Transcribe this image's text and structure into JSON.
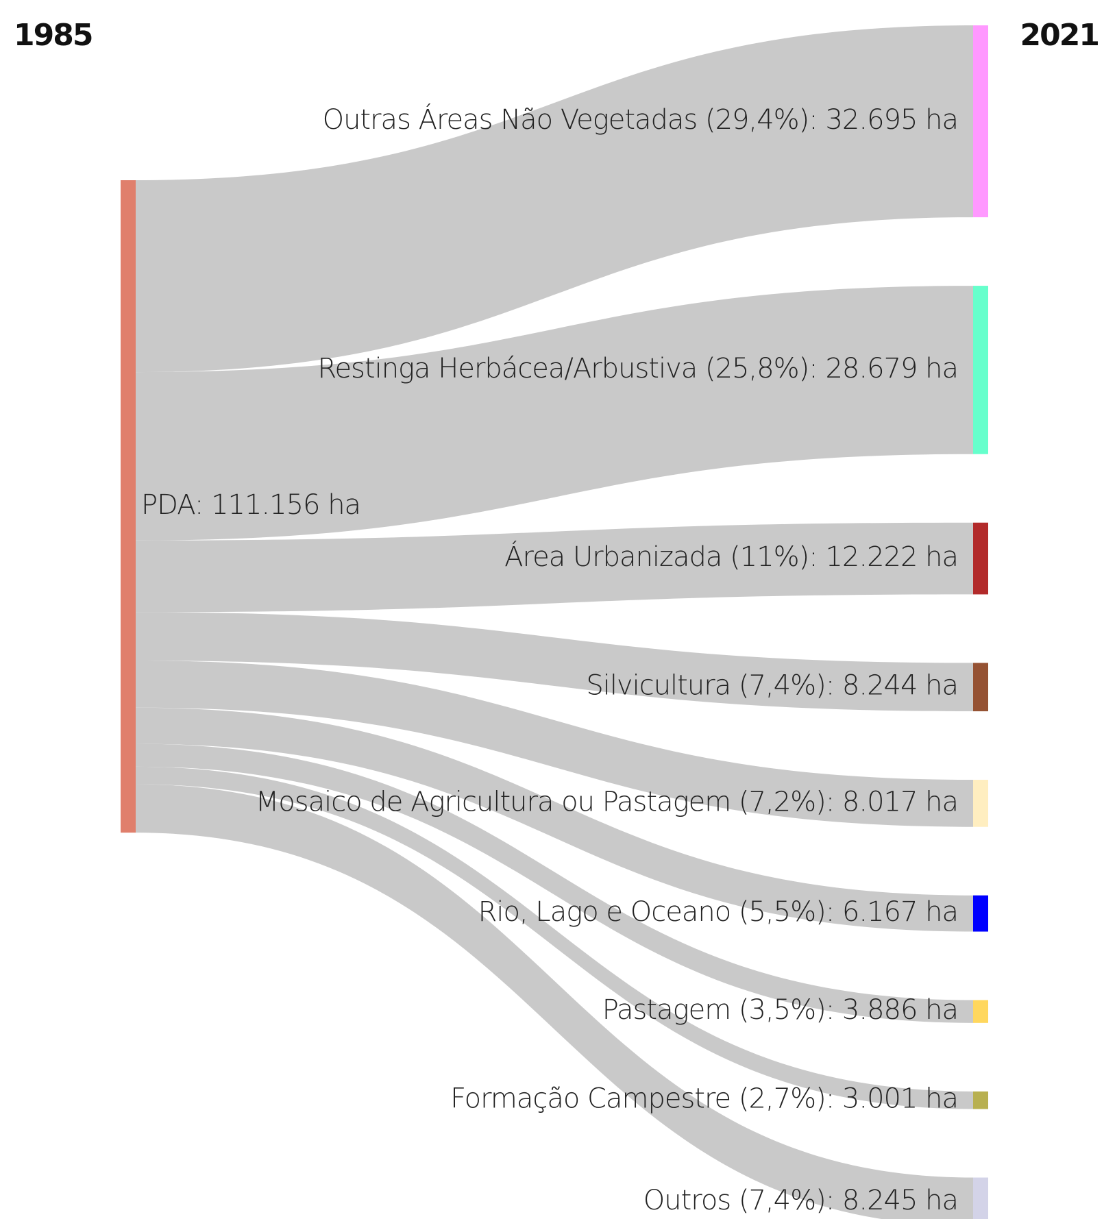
{
  "chart_data": {
    "type": "sankey",
    "left_heading": "1985",
    "right_heading": "2021",
    "link_color": "#c6c6c6",
    "source": {
      "label": "PDA: 111.156 ha",
      "value": 111156,
      "color": "#e07f6c"
    },
    "targets": [
      {
        "label": "Outras Áreas Não Vegetadas (29,4%): 32.695 ha",
        "value": 32695,
        "color": "#ff99ff"
      },
      {
        "label": "Restinga Herbácea/Arbustiva (25,8%): 28.679 ha",
        "value": 28679,
        "color": "#66ffcc"
      },
      {
        "label": "Área Urbanizada (11%): 12.222 ha",
        "value": 12222,
        "color": "#b22a2a"
      },
      {
        "label": "Silvicultura (7,4%): 8.244 ha",
        "value": 8244,
        "color": "#955233"
      },
      {
        "label": "Mosaico de Agricultura ou Pastagem (7,2%): 8.017 ha",
        "value": 8017,
        "color": "#ffeec0"
      },
      {
        "label": "Rio, Lago e Oceano (5,5%): 6.167 ha",
        "value": 6167,
        "color": "#0000ff"
      },
      {
        "label": "Pastagem (3,5%): 3.886 ha",
        "value": 3886,
        "color": "#ffd75e"
      },
      {
        "label": "Formação Campestre (2,7%): 3.001 ha",
        "value": 3001,
        "color": "#b8b050"
      },
      {
        "label": "Outros (7,4%): 8.245 ha",
        "value": 8245,
        "color": "#d3d3e8"
      }
    ]
  }
}
